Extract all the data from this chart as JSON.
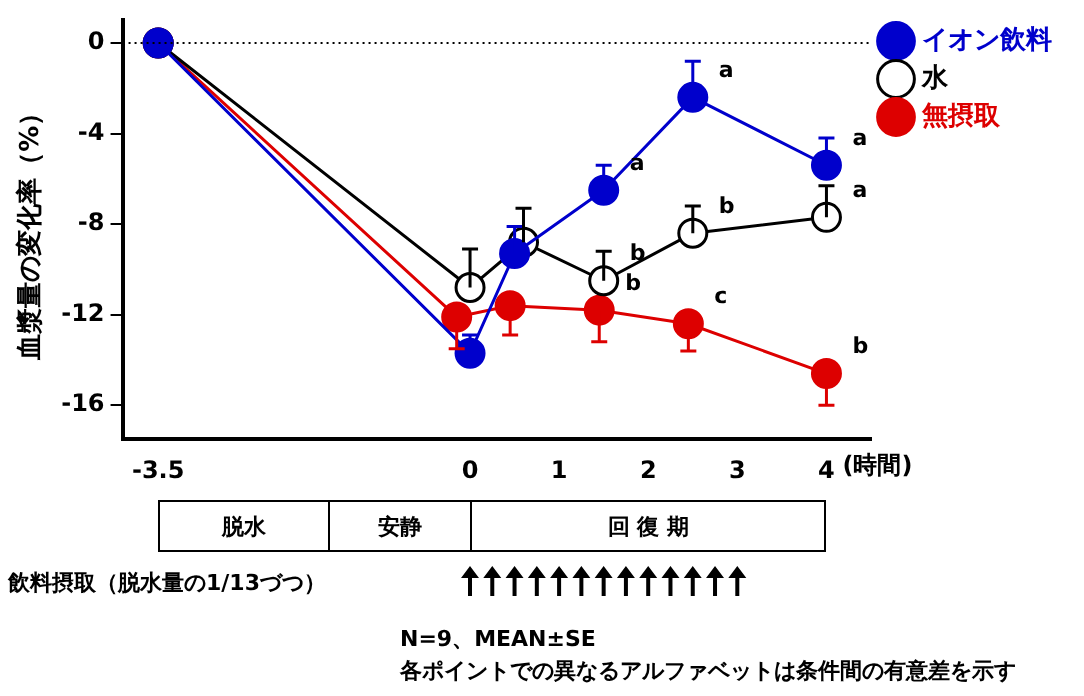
{
  "chart_data": {
    "type": "line",
    "ylabel": "血漿量の変化率（%）",
    "xlabel": "(時間)",
    "xlim": [
      -3.9,
      4.5
    ],
    "xticks": [
      -3.5,
      0,
      1,
      2,
      3,
      4
    ],
    "ylim": [
      -17.5,
      1
    ],
    "yticks": [
      0,
      -4,
      -8,
      -12,
      -16
    ],
    "grid": false,
    "legend": "top right",
    "marker": "circle",
    "line_style": "solid",
    "ref_lines": [
      {
        "axis": "y",
        "value": 0,
        "line_style": "dotted",
        "color": "#000000"
      }
    ],
    "series": [
      {
        "name": "イオン飲料",
        "color": "#0000cc",
        "x": [
          -3.5,
          0,
          0.5,
          1.5,
          2.5,
          4
        ],
        "values": [
          0,
          -13.7,
          -9.3,
          -6.5,
          -2.4,
          -5.4
        ],
        "errors": [
          null,
          [
            -13.7,
            -12.9
          ],
          [
            -9.3,
            -8.1
          ],
          [
            -6.5,
            -5.4
          ],
          [
            -2.4,
            -0.8
          ],
          [
            -5.4,
            -4.2
          ]
        ]
      },
      {
        "name": "水",
        "color": "#000000",
        "colors": [
          "#ffffff",
          "#ffffff",
          "#ffffff",
          "#ffffff",
          "#ffffff",
          "#ffffff"
        ],
        "x": [
          -3.5,
          0,
          0.6,
          1.5,
          2.5,
          4
        ],
        "values": [
          0,
          -10.8,
          -8.8,
          -10.5,
          -8.4,
          -7.7
        ],
        "errors": [
          null,
          [
            -10.8,
            -9.1
          ],
          [
            -8.8,
            -7.3
          ],
          [
            -10.5,
            -9.2
          ],
          [
            -8.4,
            -7.2
          ],
          [
            -7.7,
            -6.3
          ]
        ]
      },
      {
        "name": "無摂取",
        "color": "#dd0000",
        "x": [
          -3.5,
          -0.15,
          0.45,
          1.45,
          2.45,
          4
        ],
        "values": [
          0,
          -12.1,
          -11.6,
          -11.8,
          -12.4,
          -14.6
        ],
        "errors": [
          null,
          [
            -13.5,
            -12.1
          ],
          [
            -12.9,
            -11.6
          ],
          [
            -13.2,
            -11.8
          ],
          [
            -13.6,
            -12.4
          ],
          [
            -16.0,
            -14.6
          ]
        ]
      }
    ],
    "annotations": [
      "脱水",
      "安静",
      "回 復 期",
      "飲料摂取（脱水量の1/13づつ）",
      "N=9、MEAN±SE",
      "各ポイントでの異なるアルファベットは条件間の有意差を示す",
      {
        "text": "a",
        "x": 1.5,
        "y": -6.5
      },
      {
        "text": "a",
        "x": 2.5,
        "y": -2.4
      },
      {
        "text": "a",
        "x": 4,
        "y": -5.4
      },
      {
        "text": "b",
        "x": 1.5,
        "y": -10.5
      },
      {
        "text": "b",
        "x": 2.5,
        "y": -8.4
      },
      {
        "text": "a",
        "x": 4,
        "y": -7.7
      },
      {
        "text": "b",
        "x": 1.45,
        "y": -11.8
      },
      {
        "text": "c",
        "x": 2.45,
        "y": -12.4
      },
      {
        "text": "b",
        "x": 4,
        "y": -14.6
      }
    ]
  }
}
